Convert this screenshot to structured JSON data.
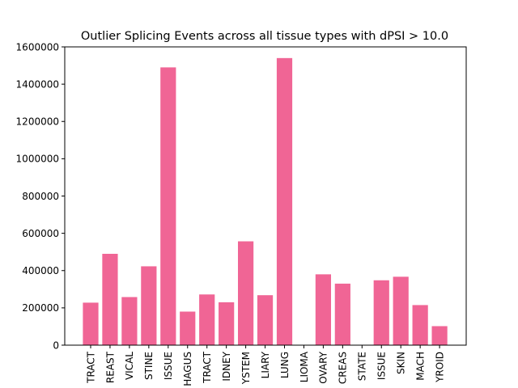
{
  "chart_data": {
    "type": "bar",
    "title": "Outlier Splicing Events across all tissue types with dPSI > 10.0",
    "xlabel": "",
    "ylabel": "",
    "ylim": [
      0,
      1600000
    ],
    "yticks": [
      0,
      200000,
      400000,
      600000,
      800000,
      1000000,
      1200000,
      1400000,
      1600000
    ],
    "ytick_labels": [
      "0",
      "200000",
      "400000",
      "600000",
      "800000",
      "1000000",
      "1200000",
      "1400000",
      "1600000"
    ],
    "categories": [
      "TRACT",
      "BREAST",
      "CERVICAL",
      "INTESTINE",
      "TISSUE",
      "ESOPHAGUS",
      "TRACT",
      "KIDNEY",
      "SYSTEM",
      "BILIARY",
      "LUNG",
      "GLIOMA",
      "OVARY",
      "PANCREAS",
      "PROSTATE",
      "TISSUE",
      "SKIN",
      "STOMACH",
      "THYROID"
    ],
    "category_labels_visible": [
      "TRACT",
      "REAST",
      "VICAL",
      "STINE",
      "ISSUE",
      "HAGUS",
      "TRACT",
      "IDNEY",
      "YSTEM",
      "LIARY",
      "LUNG",
      "LIOMA",
      "OVARY",
      "CREAS",
      "STATE",
      "ISSUE",
      "SKIN",
      "MACH",
      "YROID"
    ],
    "values": [
      228000,
      490000,
      258000,
      423000,
      1490000,
      180000,
      272000,
      230000,
      557000,
      268000,
      1540000,
      0,
      380000,
      330000,
      0,
      348000,
      367000,
      215000,
      102000
    ],
    "bar_color": "#f06595",
    "grid": false,
    "legend": "none"
  }
}
